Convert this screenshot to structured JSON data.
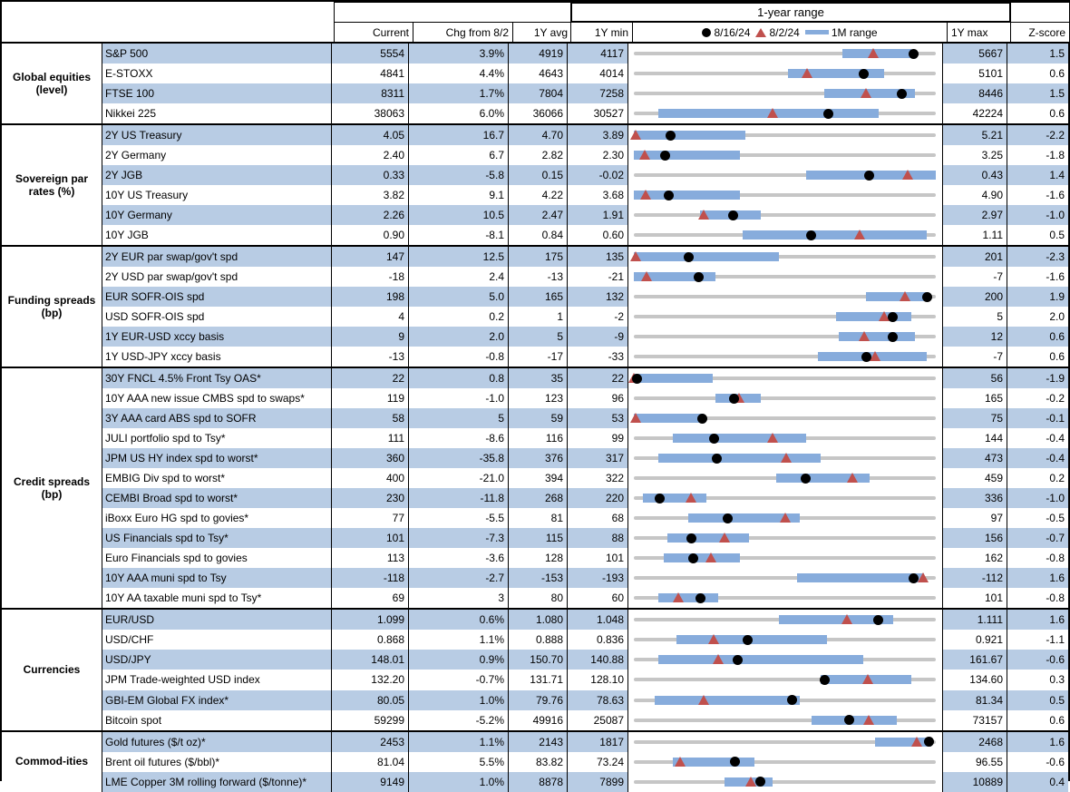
{
  "header": {
    "range_title": "1-year range",
    "col_current": "Current",
    "col_chg": "Chg from 8/2",
    "col_avg": "1Y avg",
    "col_min": "1Y min",
    "col_max": "1Y max",
    "col_z": "Z-score",
    "legend": {
      "dot_label": "8/16/24",
      "tri_label": "8/2/24",
      "bar_label": "1M range"
    }
  },
  "colors": {
    "stripe": "#b8cce4",
    "range_bar": "#87acdc",
    "triangle": "#c0504d",
    "dot": "#000000",
    "track": "#c6c6c6"
  },
  "chart_data": {
    "type": "table",
    "title": "1-year range",
    "legend_entries": [
      "8/16/24",
      "8/2/24",
      "1M range"
    ],
    "columns": [
      "Current",
      "Chg from 8/2",
      "1Y avg",
      "1Y min",
      "1Y max",
      "Z-score"
    ],
    "sections": [
      {
        "category": "Global equities (level)",
        "rows": [
          {
            "name": "S&P 500",
            "current": "5554",
            "chg": "3.9%",
            "avg": "4919",
            "min": "4117",
            "max": "5667",
            "z": "1.5",
            "bar": [
              0.69,
              0.92
            ],
            "dot": 0.927,
            "tri": 0.793
          },
          {
            "name": "E-STOXX",
            "current": "4841",
            "chg": "4.4%",
            "avg": "4643",
            "min": "4014",
            "max": "5101",
            "z": "0.6",
            "bar": [
              0.51,
              0.83
            ],
            "dot": 0.761,
            "tri": 0.573
          },
          {
            "name": "FTSE 100",
            "current": "8311",
            "chg": "1.7%",
            "avg": "7804",
            "min": "7258",
            "max": "8446",
            "z": "1.5",
            "bar": [
              0.63,
              0.93
            ],
            "dot": 0.886,
            "tri": 0.769
          },
          {
            "name": "Nikkei 225",
            "current": "38063",
            "chg": "6.0%",
            "avg": "36066",
            "min": "30527",
            "max": "42224",
            "z": "0.6",
            "bar": [
              0.08,
              0.81
            ],
            "dot": 0.644,
            "tri": 0.46
          }
        ]
      },
      {
        "category": "Sovereign par rates (%)",
        "rows": [
          {
            "name": "2Y US Treasury",
            "current": "4.05",
            "chg": "16.7",
            "avg": "4.70",
            "min": "3.89",
            "max": "5.21",
            "z": "-2.2",
            "bar": [
              0.0,
              0.37
            ],
            "dot": 0.121,
            "tri": 0.005
          },
          {
            "name": "2Y Germany",
            "current": "2.40",
            "chg": "6.7",
            "avg": "2.82",
            "min": "2.30",
            "max": "3.25",
            "z": "-1.8",
            "bar": [
              0.0,
              0.35
            ],
            "dot": 0.105,
            "tri": 0.035
          },
          {
            "name": "2Y JGB",
            "current": "0.33",
            "chg": "-5.8",
            "avg": "0.15",
            "min": "-0.02",
            "max": "0.43",
            "z": "1.4",
            "bar": [
              0.57,
              1.0
            ],
            "dot": 0.778,
            "tri": 0.907
          },
          {
            "name": "10Y US Treasury",
            "current": "3.82",
            "chg": "9.1",
            "avg": "4.22",
            "min": "3.68",
            "max": "4.90",
            "z": "-1.6",
            "bar": [
              0.0,
              0.35
            ],
            "dot": 0.115,
            "tri": 0.04
          },
          {
            "name": "10Y Germany",
            "current": "2.26",
            "chg": "10.5",
            "avg": "2.47",
            "min": "1.91",
            "max": "2.97",
            "z": "-1.0",
            "bar": [
              0.22,
              0.42
            ],
            "dot": 0.33,
            "tri": 0.231
          },
          {
            "name": "10Y JGB",
            "current": "0.90",
            "chg": "-8.1",
            "avg": "0.84",
            "min": "0.60",
            "max": "1.11",
            "z": "0.5",
            "bar": [
              0.36,
              0.97
            ],
            "dot": 0.588,
            "tri": 0.747
          }
        ]
      },
      {
        "category": "Funding spreads (bp)",
        "rows": [
          {
            "name": "2Y EUR par swap/gov't spd",
            "current": "147",
            "chg": "12.5",
            "avg": "175",
            "min": "135",
            "max": "201",
            "z": "-2.3",
            "bar": [
              0.0,
              0.48
            ],
            "dot": 0.182,
            "tri": 0.005
          },
          {
            "name": "2Y USD par swap/gov't spd",
            "current": "-18",
            "chg": "2.4",
            "avg": "-13",
            "min": "-21",
            "max": "-7",
            "z": "-1.6",
            "bar": [
              0.0,
              0.27
            ],
            "dot": 0.214,
            "tri": 0.043
          },
          {
            "name": "EUR SOFR-OIS spd",
            "current": "198",
            "chg": "5.0",
            "avg": "165",
            "min": "132",
            "max": "200",
            "z": "1.9",
            "bar": [
              0.77,
              0.975
            ],
            "dot": 0.971,
            "tri": 0.897
          },
          {
            "name": "USD SOFR-OIS spd",
            "current": "4",
            "chg": "0.2",
            "avg": "1",
            "min": "-2",
            "max": "5",
            "z": "2.0",
            "bar": [
              0.67,
              0.92
            ],
            "dot": 0.857,
            "tri": 0.829
          },
          {
            "name": "1Y EUR-USD xccy basis",
            "current": "9",
            "chg": "2.0",
            "avg": "5",
            "min": "-9",
            "max": "12",
            "z": "0.6",
            "bar": [
              0.68,
              0.93
            ],
            "dot": 0.857,
            "tri": 0.762
          },
          {
            "name": "1Y USD-JPY xccy basis",
            "current": "-13",
            "chg": "-0.8",
            "avg": "-17",
            "min": "-33",
            "max": "-7",
            "z": "0.6",
            "bar": [
              0.61,
              0.97
            ],
            "dot": 0.769,
            "tri": 0.8
          }
        ]
      },
      {
        "category": "Credit spreads (bp)",
        "rows": [
          {
            "name": "30Y FNCL 4.5% Front Tsy OAS*",
            "current": "22",
            "chg": "0.8",
            "avg": "35",
            "min": "22",
            "max": "56",
            "z": "-1.9",
            "bar": [
              0.0,
              0.26
            ],
            "dot": 0.01,
            "tri": 0.0
          },
          {
            "name": "10Y AAA new issue CMBS spd to swaps*",
            "current": "119",
            "chg": "-1.0",
            "avg": "123",
            "min": "96",
            "max": "165",
            "z": "-0.2",
            "bar": [
              0.27,
              0.42
            ],
            "dot": 0.333,
            "tri": 0.348
          },
          {
            "name": "3Y AAA card ABS spd to SOFR",
            "current": "58",
            "chg": "5",
            "avg": "59",
            "min": "53",
            "max": "75",
            "z": "-0.1",
            "bar": [
              0.0,
              0.23
            ],
            "dot": 0.227,
            "tri": 0.005
          },
          {
            "name": "JULI portfolio spd to Tsy*",
            "current": "111",
            "chg": "-8.6",
            "avg": "116",
            "min": "99",
            "max": "144",
            "z": "-0.4",
            "bar": [
              0.13,
              0.57
            ],
            "dot": 0.267,
            "tri": 0.458
          },
          {
            "name": "JPM US HY index spd to worst*",
            "current": "360",
            "chg": "-35.8",
            "avg": "376",
            "min": "317",
            "max": "473",
            "z": "-0.4",
            "bar": [
              0.08,
              0.62
            ],
            "dot": 0.276,
            "tri": 0.505
          },
          {
            "name": "EMBIG Div spd to worst*",
            "current": "400",
            "chg": "-21.0",
            "avg": "394",
            "min": "322",
            "max": "459",
            "z": "0.2",
            "bar": [
              0.47,
              0.78
            ],
            "dot": 0.569,
            "tri": 0.723
          },
          {
            "name": "CEMBI Broad spd to worst*",
            "current": "230",
            "chg": "-11.8",
            "avg": "268",
            "min": "220",
            "max": "336",
            "z": "-1.0",
            "bar": [
              0.03,
              0.24
            ],
            "dot": 0.086,
            "tri": 0.188
          },
          {
            "name": "iBoxx Euro HG spd to govies*",
            "current": "77",
            "chg": "-5.5",
            "avg": "81",
            "min": "68",
            "max": "97",
            "z": "-0.5",
            "bar": [
              0.18,
              0.55
            ],
            "dot": 0.31,
            "tri": 0.5
          },
          {
            "name": "US Financials spd to Tsy*",
            "current": "101",
            "chg": "-7.3",
            "avg": "115",
            "min": "88",
            "max": "156",
            "z": "-0.7",
            "bar": [
              0.11,
              0.38
            ],
            "dot": 0.191,
            "tri": 0.299
          },
          {
            "name": "Euro Financials spd to govies",
            "current": "113",
            "chg": "-3.6",
            "avg": "128",
            "min": "101",
            "max": "162",
            "z": "-0.8",
            "bar": [
              0.1,
              0.35
            ],
            "dot": 0.197,
            "tri": 0.256
          },
          {
            "name": "10Y AAA muni spd to Tsy",
            "current": "-118",
            "chg": "-2.7",
            "avg": "-153",
            "min": "-193",
            "max": "-112",
            "z": "1.6",
            "bar": [
              0.54,
              0.96
            ],
            "dot": 0.926,
            "tri": 0.959
          },
          {
            "name": "10Y AA taxable muni spd to Tsy*",
            "current": "69",
            "chg": "3",
            "avg": "80",
            "min": "60",
            "max": "101",
            "z": "-0.8",
            "bar": [
              0.08,
              0.28
            ],
            "dot": 0.22,
            "tri": 0.146
          }
        ]
      },
      {
        "category": "Currencies",
        "rows": [
          {
            "name": "EUR/USD",
            "current": "1.099",
            "chg": "0.6%",
            "avg": "1.080",
            "min": "1.048",
            "max": "1.111",
            "z": "1.6",
            "bar": [
              0.48,
              0.86
            ],
            "dot": 0.81,
            "tri": 0.705
          },
          {
            "name": "USD/CHF",
            "current": "0.868",
            "chg": "1.1%",
            "avg": "0.888",
            "min": "0.836",
            "max": "0.921",
            "z": "-1.1",
            "bar": [
              0.14,
              0.64
            ],
            "dot": 0.376,
            "tri": 0.265
          },
          {
            "name": "USD/JPY",
            "current": "148.01",
            "chg": "0.9%",
            "avg": "150.70",
            "min": "140.88",
            "max": "161.67",
            "z": "-0.6",
            "bar": [
              0.08,
              0.76
            ],
            "dot": 0.343,
            "tri": 0.279
          },
          {
            "name": "JPM Trade-weighted USD index",
            "current": "132.20",
            "chg": "-0.7%",
            "avg": "131.71",
            "min": "128.10",
            "max": "134.60",
            "z": "0.3",
            "bar": [
              0.62,
              0.92
            ],
            "dot": 0.631,
            "tri": 0.774
          },
          {
            "name": "GBI-EM Global FX index*",
            "current": "80.05",
            "chg": "1.0%",
            "avg": "79.76",
            "min": "78.63",
            "max": "81.34",
            "z": "0.5",
            "bar": [
              0.07,
              0.55
            ],
            "dot": 0.524,
            "tri": 0.232
          },
          {
            "name": "Bitcoin spot",
            "current": "59299",
            "chg": "-5.2%",
            "avg": "49916",
            "min": "25087",
            "max": "73157",
            "z": "0.6",
            "bar": [
              0.59,
              0.87
            ],
            "dot": 0.712,
            "tri": 0.779
          }
        ]
      },
      {
        "category": "Commod-ities",
        "rows": [
          {
            "name": "Gold futures ($/t oz)*",
            "current": "2453",
            "chg": "1.1%",
            "avg": "2143",
            "min": "1817",
            "max": "2468",
            "z": "1.6",
            "bar": [
              0.8,
              0.985
            ],
            "dot": 0.977,
            "tri": 0.936
          },
          {
            "name": "Brent oil futures ($/bbl)*",
            "current": "81.04",
            "chg": "5.5%",
            "avg": "83.82",
            "min": "73.24",
            "max": "96.55",
            "z": "-0.6",
            "bar": [
              0.13,
              0.4
            ],
            "dot": 0.335,
            "tri": 0.154
          },
          {
            "name": "LME Copper 3M rolling forward ($/tonne)*",
            "current": "9149",
            "chg": "1.0%",
            "avg": "8878",
            "min": "7899",
            "max": "10889",
            "z": "0.4",
            "bar": [
              0.3,
              0.46
            ],
            "dot": 0.418,
            "tri": 0.388
          }
        ]
      }
    ]
  }
}
